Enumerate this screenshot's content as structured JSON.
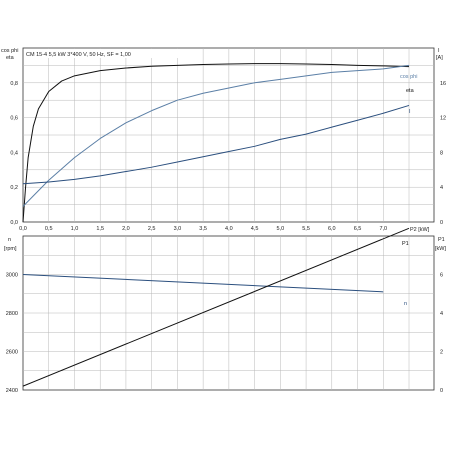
{
  "chart_data": [
    {
      "type": "line",
      "title": "CM 15-4   5,5 kW   3*400 V, 50 Hz, SF = 1,00",
      "left_axis_label_top": "cos phi",
      "left_axis_label_bottom": "eta",
      "right_axis_label_top": "I",
      "right_axis_label_bottom": "[A]",
      "xlabel": "P2 [kW]",
      "xlim": [
        0,
        7.5
      ],
      "xticks": [
        "0,0",
        "0,5",
        "1,0",
        "1,5",
        "2,0",
        "2,5",
        "3,0",
        "3,5",
        "4,0",
        "4,5",
        "5,0",
        "5,5",
        "6,0",
        "6,5",
        "7,0"
      ],
      "ylim_left": [
        0,
        1.0
      ],
      "yticks_left": [
        "0,0",
        "0,2",
        "0,4",
        "0,6",
        "0,8"
      ],
      "ylim_right": [
        0,
        20
      ],
      "yticks_right": [
        "0",
        "4",
        "8",
        "12",
        "16"
      ],
      "grid": true,
      "series": [
        {
          "name": "eta",
          "axis": "left",
          "color": "#111111",
          "x": [
            0,
            0.05,
            0.1,
            0.2,
            0.3,
            0.5,
            0.75,
            1.0,
            1.5,
            2.0,
            2.5,
            3.0,
            3.5,
            4.0,
            4.5,
            5.0,
            5.5,
            6.0,
            6.5,
            7.0,
            7.5
          ],
          "y": [
            0.0,
            0.2,
            0.37,
            0.55,
            0.65,
            0.75,
            0.81,
            0.84,
            0.87,
            0.885,
            0.895,
            0.9,
            0.905,
            0.908,
            0.91,
            0.91,
            0.908,
            0.905,
            0.9,
            0.897,
            0.893
          ]
        },
        {
          "name": "cos phi",
          "axis": "left",
          "color": "#5b7fa6",
          "x": [
            0,
            0.5,
            1.0,
            1.5,
            2.0,
            2.5,
            3.0,
            3.5,
            4.0,
            4.5,
            5.0,
            5.5,
            6.0,
            6.5,
            7.0,
            7.5
          ],
          "y": [
            0.09,
            0.24,
            0.37,
            0.48,
            0.57,
            0.64,
            0.7,
            0.74,
            0.77,
            0.8,
            0.82,
            0.84,
            0.86,
            0.87,
            0.88,
            0.9
          ]
        },
        {
          "name": "I",
          "axis": "right",
          "color": "#2b4f7e",
          "x": [
            0,
            0.5,
            1.0,
            1.5,
            2.0,
            2.5,
            3.0,
            3.5,
            4.0,
            4.5,
            5.0,
            5.5,
            6.0,
            6.5,
            7.0,
            7.5
          ],
          "y": [
            4.4,
            4.6,
            4.9,
            5.3,
            5.8,
            6.3,
            6.9,
            7.5,
            8.1,
            8.7,
            9.5,
            10.1,
            10.9,
            11.7,
            12.5,
            13.4
          ]
        }
      ]
    },
    {
      "type": "line",
      "left_axis_label_top": "n",
      "left_axis_label_bottom": "[rpm]",
      "right_axis_label_top": "P1",
      "right_axis_label_bottom": "[kW]",
      "xlim": [
        0,
        7.5
      ],
      "ylim_left": [
        2400,
        3200
      ],
      "yticks_left": [
        "2400",
        "2600",
        "2800",
        "3000"
      ],
      "ylim_right": [
        0,
        8
      ],
      "yticks_right": [
        "0",
        "2",
        "4",
        "6"
      ],
      "grid": true,
      "series": [
        {
          "name": "n",
          "axis": "left",
          "color": "#2b4f7e",
          "x": [
            0,
            7.0
          ],
          "y": [
            3000,
            2910
          ]
        },
        {
          "name": "P1",
          "axis": "right",
          "color": "#111111",
          "x": [
            0,
            7.5
          ],
          "y": [
            0.2,
            8.4
          ]
        }
      ]
    }
  ]
}
